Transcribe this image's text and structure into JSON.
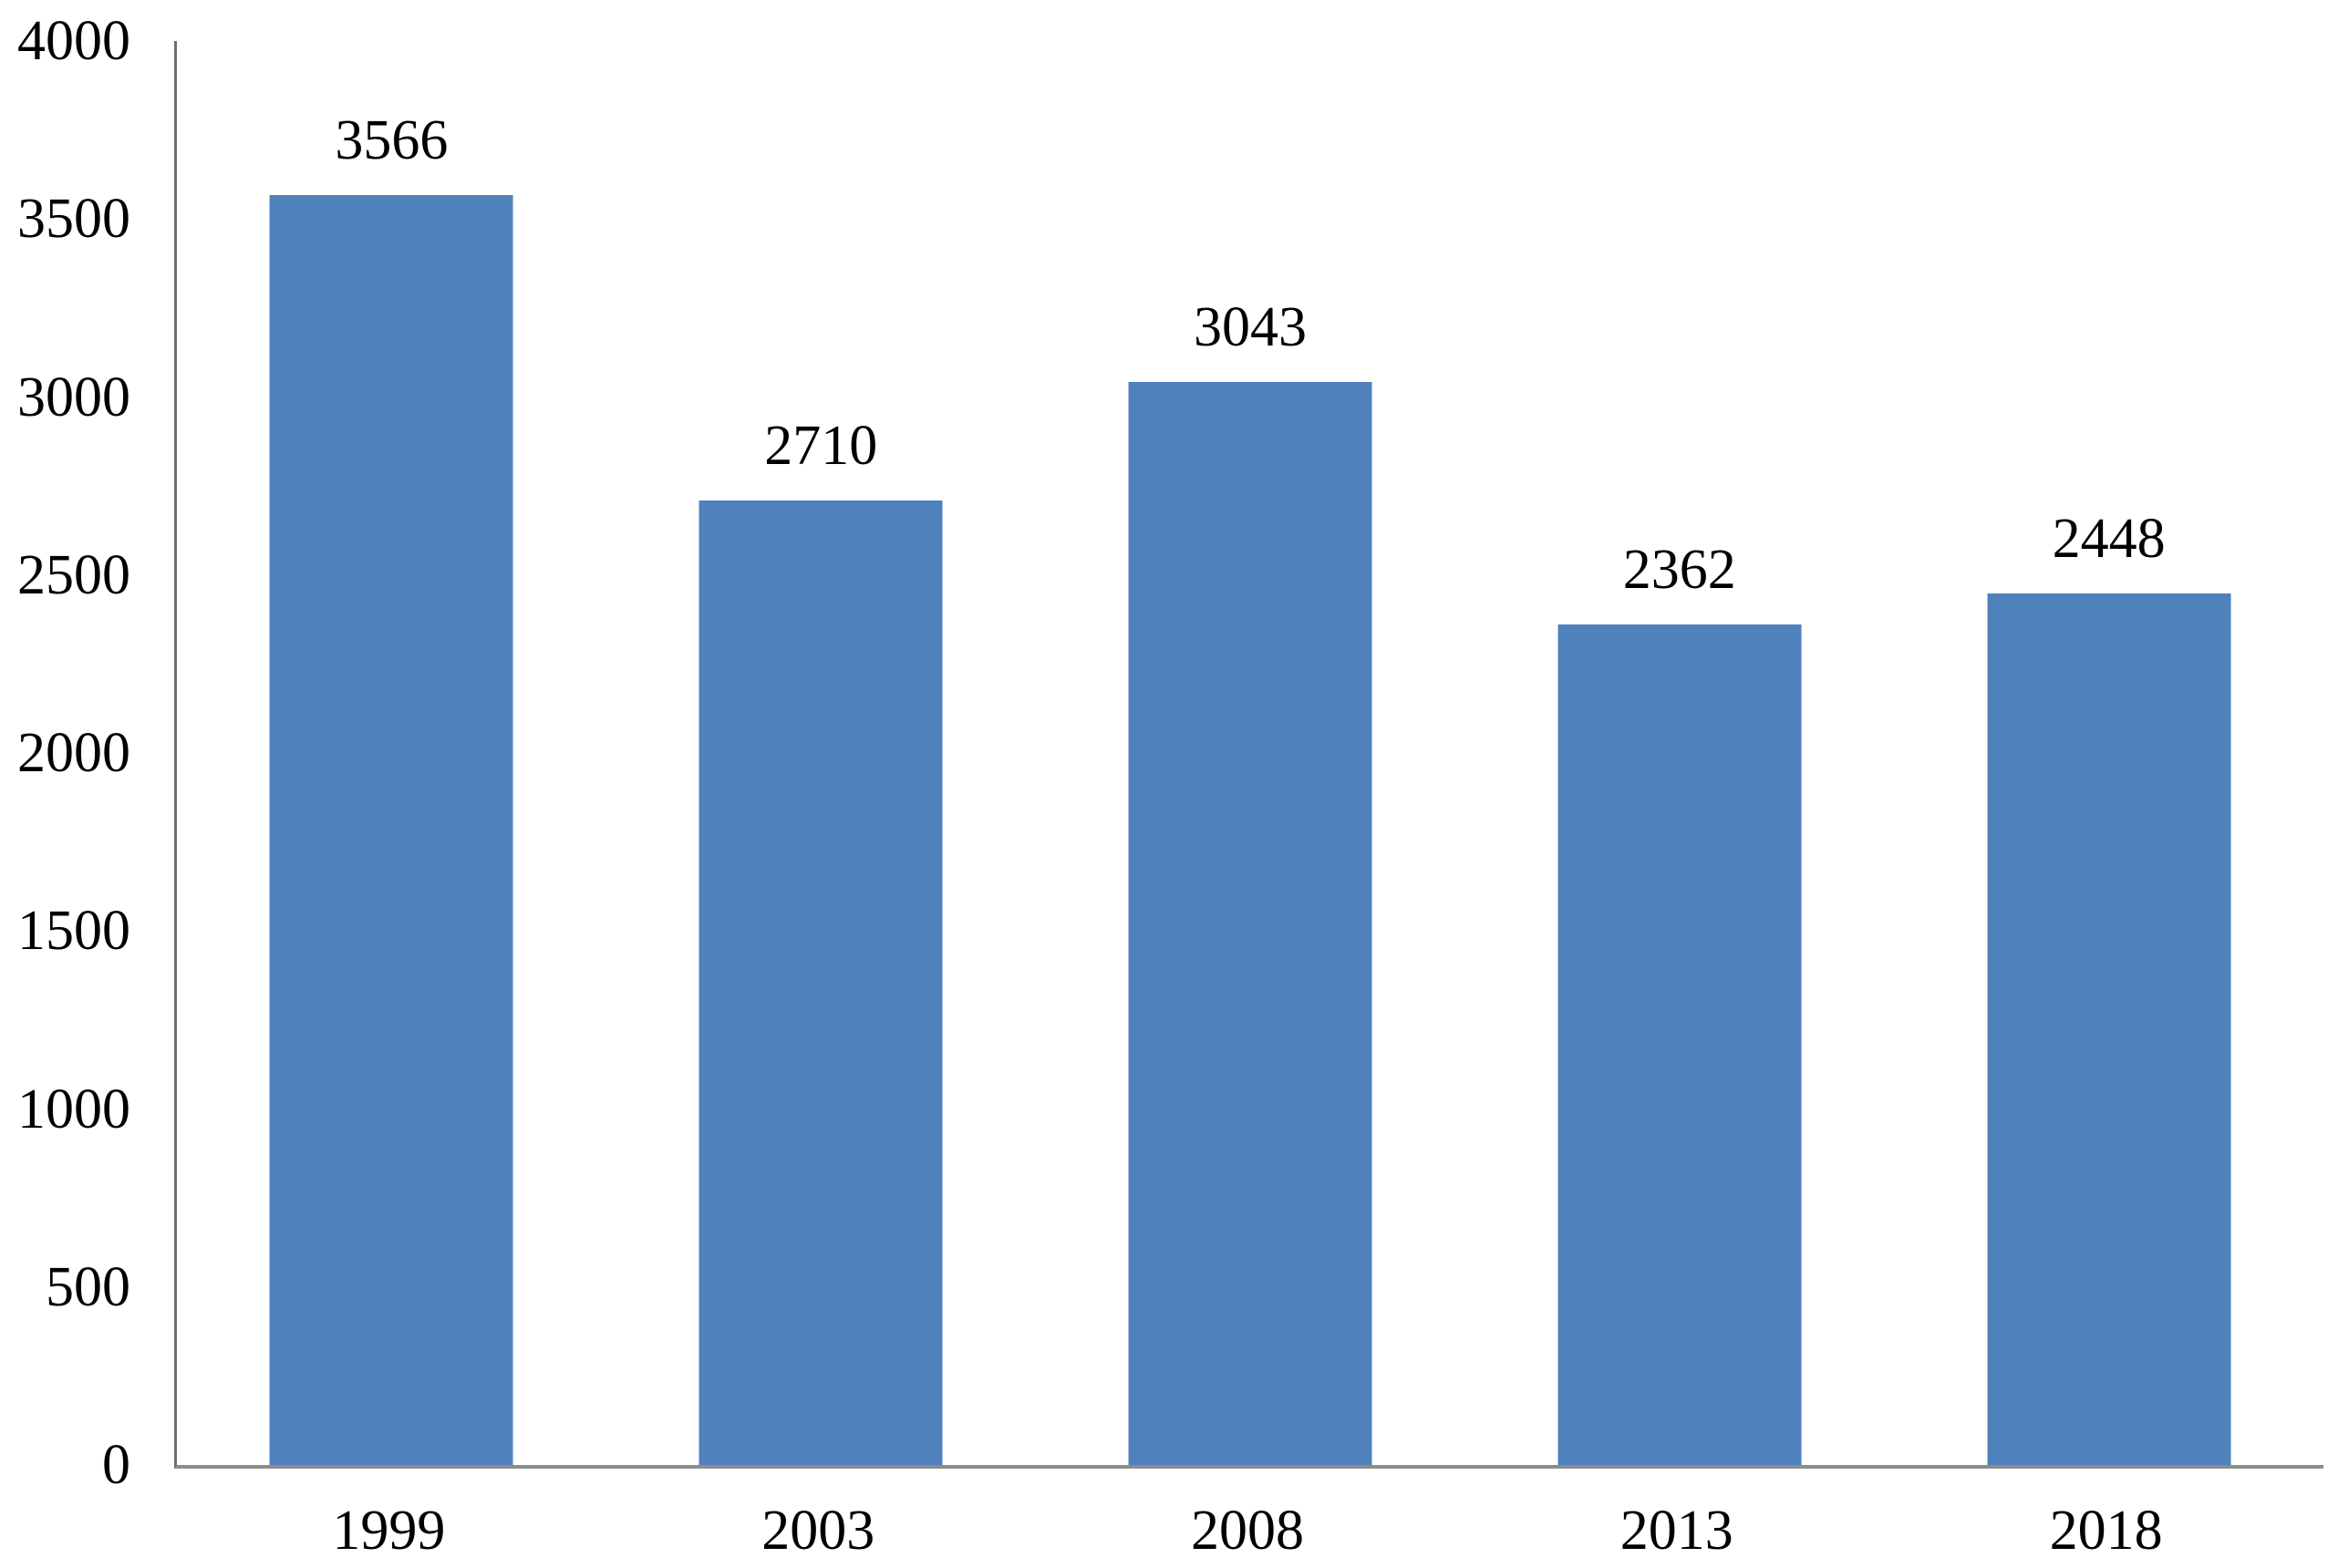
{
  "chart_data": {
    "type": "bar",
    "categories": [
      "1999",
      "2003",
      "2008",
      "2013",
      "2018"
    ],
    "values": [
      3566,
      2710,
      3043,
      2362,
      2448
    ],
    "series_name": "",
    "title": "",
    "subtitle": "",
    "xlabel": "",
    "ylabel": "",
    "ylim": [
      0,
      4000
    ],
    "ytick_step": 500,
    "yticks": [
      0,
      500,
      1000,
      1500,
      2000,
      2500,
      3000,
      3500,
      4000
    ],
    "grid": false,
    "legend": false,
    "data_labels_shown": true,
    "colors": {
      "bar_fill": "#4F81BD",
      "value_axis_line": "#6e6e6e",
      "category_axis_line": "#8c8c8c",
      "label_text": "#000000",
      "background": "#ffffff"
    }
  }
}
